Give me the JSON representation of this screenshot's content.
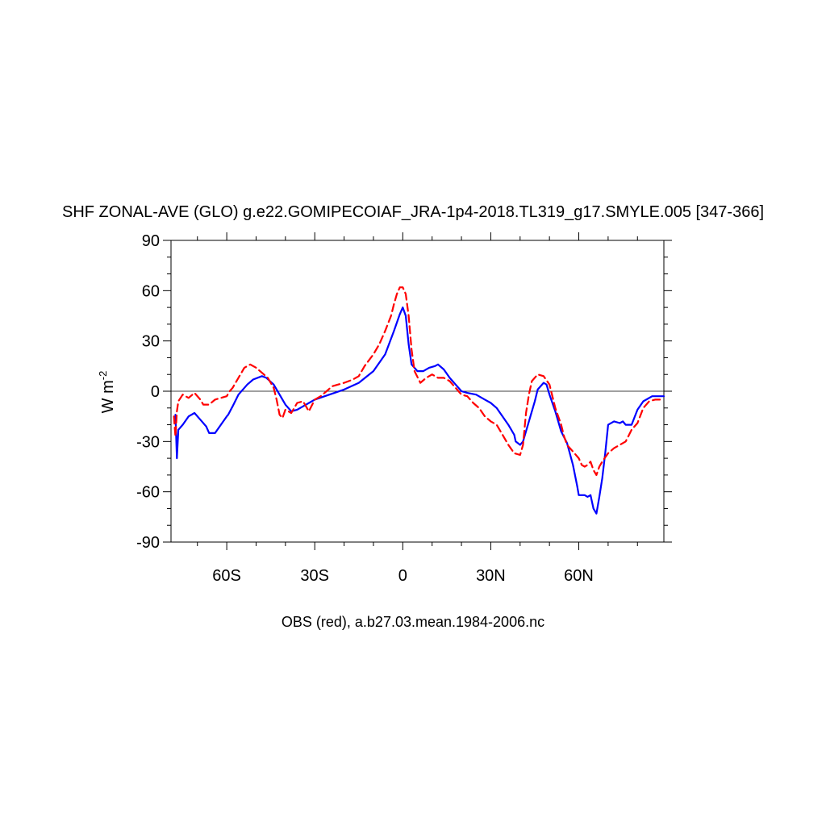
{
  "chart_data": {
    "type": "line",
    "title": "SHF ZONAL-AVE (GLO) g.e22.GOMIPECOIAF_JRA-1p4-2018.TL319_g17.SMYLE.005 [347-366]",
    "ylabel_base": "W m",
    "ylabel_exp": "-2",
    "caption": "OBS (red), a.b27.03.mean.1984-2006.nc",
    "xlim": [
      -79,
      89
    ],
    "ylim": [
      -90,
      90
    ],
    "x_ticks": [
      {
        "value": -60,
        "label": "60S"
      },
      {
        "value": -30,
        "label": "30S"
      },
      {
        "value": 0,
        "label": "0"
      },
      {
        "value": 30,
        "label": "30N"
      },
      {
        "value": 60,
        "label": "60N"
      }
    ],
    "y_ticks": [
      {
        "value": 90,
        "label": "90"
      },
      {
        "value": 60,
        "label": "60"
      },
      {
        "value": 30,
        "label": "30"
      },
      {
        "value": 0,
        "label": "0"
      },
      {
        "value": -30,
        "label": "-30"
      },
      {
        "value": -60,
        "label": "-60"
      },
      {
        "value": -90,
        "label": "-90"
      }
    ],
    "reference_line": 0,
    "series": [
      {
        "id": "model",
        "color": "#0000ff",
        "dash": "solid",
        "x": [
          -77.5,
          -77,
          -76.5,
          -75,
          -73,
          -71,
          -69,
          -67,
          -66,
          -64,
          -62,
          -60,
          -59.5,
          -58,
          -56,
          -53,
          -51,
          -48,
          -46.5,
          -44,
          -42,
          -40,
          -38,
          -36,
          -30,
          -25,
          -20,
          -15,
          -10,
          -6,
          -3,
          -1,
          0,
          1,
          2,
          3,
          5,
          7,
          9,
          11,
          12,
          14,
          16,
          18,
          20,
          22,
          25,
          28,
          30,
          32,
          34,
          36,
          38,
          38.5,
          40,
          41,
          43,
          45,
          46,
          48,
          49,
          50,
          52,
          54,
          56,
          58,
          59.5,
          60,
          61,
          62,
          63,
          64,
          64.5,
          65,
          66,
          67,
          68,
          69,
          70,
          72,
          74,
          75,
          76,
          78,
          80,
          82,
          85,
          87,
          89
        ],
        "y": [
          -14,
          -40,
          -23,
          -20,
          -15,
          -13,
          -17,
          -21,
          -25,
          -25,
          -20,
          -15,
          -14,
          -9,
          -2,
          4,
          7,
          9,
          8,
          4,
          -2,
          -8,
          -12,
          -11,
          -5,
          -2,
          1,
          5,
          12,
          22,
          36,
          46,
          50,
          45,
          28,
          16,
          12,
          12,
          14,
          15,
          16,
          13,
          8,
          4,
          0,
          -1,
          -2,
          -5,
          -7,
          -10,
          -15,
          -20,
          -26,
          -30,
          -32,
          -30,
          -18,
          -6,
          1,
          5,
          4,
          -2,
          -12,
          -24,
          -31,
          -44,
          -57,
          -62,
          -62,
          -62,
          -63,
          -62,
          -66,
          -70,
          -73,
          -63,
          -52,
          -37,
          -20,
          -18,
          -19,
          -18,
          -20,
          -20,
          -11,
          -6,
          -3,
          -3,
          -3
        ]
      },
      {
        "id": "obs",
        "color": "#ff0000",
        "dash": "dashed",
        "x": [
          -78,
          -77.5,
          -77,
          -76.5,
          -75,
          -73,
          -71,
          -69,
          -68,
          -66,
          -64,
          -62,
          -60,
          -59,
          -58,
          -56,
          -54,
          -52,
          -50,
          -48,
          -46,
          -44,
          -43,
          -42,
          -41,
          -40,
          -38,
          -36,
          -34,
          -32,
          -30,
          -28,
          -26,
          -24,
          -22,
          -20,
          -17,
          -15,
          -13,
          -10,
          -8,
          -6,
          -4,
          -3,
          -2,
          -1,
          0,
          1,
          2,
          3,
          4,
          6,
          8,
          10,
          12,
          14,
          16,
          18,
          20,
          22,
          24,
          26,
          28,
          30,
          32,
          34,
          36,
          38,
          40,
          41,
          42,
          43,
          44,
          46,
          48,
          50,
          52,
          54,
          55,
          56,
          58,
          60,
          61,
          62,
          63,
          64,
          65,
          66,
          67,
          68,
          70,
          72,
          74,
          76,
          78,
          80,
          82,
          84,
          86,
          88
        ],
        "y": [
          -15,
          -27,
          -12,
          -6,
          -2,
          -4,
          -1,
          -5,
          -8,
          -8,
          -5,
          -4,
          -3,
          0,
          2,
          8,
          14,
          16,
          14,
          11,
          8,
          2,
          -5,
          -14,
          -16,
          -11,
          -13,
          -7,
          -6,
          -12,
          -5,
          -3,
          0,
          3,
          4,
          5,
          7,
          9,
          15,
          22,
          28,
          36,
          45,
          52,
          58,
          62,
          62,
          58,
          45,
          25,
          12,
          5,
          8,
          10,
          8,
          8,
          6,
          2,
          -2,
          -3,
          -7,
          -10,
          -15,
          -18,
          -20,
          -26,
          -32,
          -37,
          -38,
          -32,
          -13,
          -2,
          6,
          10,
          9,
          4,
          -10,
          -20,
          -27,
          -32,
          -36,
          -40,
          -44,
          -45,
          -44,
          -42,
          -47,
          -50,
          -45,
          -42,
          -37,
          -34,
          -32,
          -30,
          -23,
          -19,
          -10,
          -6,
          -5,
          -5
        ]
      }
    ]
  }
}
